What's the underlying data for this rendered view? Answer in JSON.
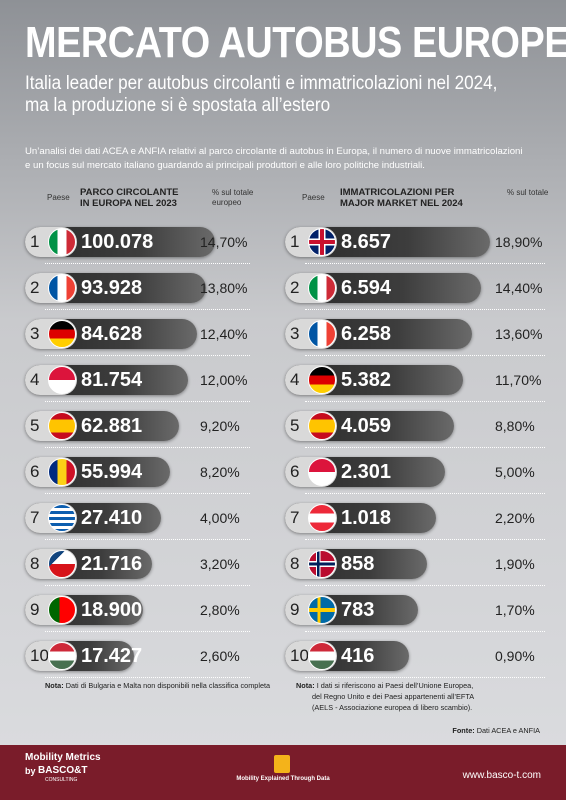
{
  "header": {
    "title": "MERCATO AUTOBUS EUROPEO",
    "subtitle": [
      "Italia leader per autobus circolanti e immatricolazioni nel 2024,",
      "ma la produzione si è spostata all’estero"
    ],
    "intro": [
      "Un’analisi dei dati ACEA e ANFIA relativi al parco circolante di autobus in Europa, il numero di nuove immatricolazioni",
      "e un focus sul mercato italiano guardando ai principali produttori e alle loro politiche industriali."
    ]
  },
  "tables": [
    {
      "headers": {
        "country": "Paese",
        "metric": [
          "PARCO CIRCOLANTE",
          "IN EUROPA NEL 2023"
        ],
        "share": [
          "% sul totale",
          "europeo"
        ]
      },
      "rows": [
        [
          1,
          "100.078",
          "14,70%"
        ],
        [
          2,
          "93.928",
          "13,80%"
        ],
        [
          3,
          "84.628",
          "12,40%"
        ],
        [
          4,
          "81.754",
          "12,00%"
        ],
        [
          5,
          "62.881",
          "9,20%"
        ],
        [
          6,
          "55.994",
          "8,20%"
        ],
        [
          7,
          "27.410",
          "4,00%"
        ],
        [
          8,
          "21.716",
          "3,20%"
        ],
        [
          9,
          "18.900",
          "2,80%"
        ],
        [
          10,
          "17.427",
          "2,60%"
        ]
      ],
      "note_label": "Nota:",
      "note": [
        "Dati di Bulgaria e Malta non disponibili nella classifica completa"
      ]
    },
    {
      "headers": {
        "country": "Paese",
        "metric": [
          "IMMATRICOLAZIONI PER",
          "MAJOR MARKET NEL 2024"
        ],
        "share": [
          "% sul totale"
        ]
      },
      "rows": [
        [
          1,
          "8.657",
          "18,90%"
        ],
        [
          2,
          "6.594",
          "14,40%"
        ],
        [
          3,
          "6.258",
          "13,60%"
        ],
        [
          4,
          "5.382",
          "11,70%"
        ],
        [
          5,
          "4.059",
          "8,80%"
        ],
        [
          6,
          "2.301",
          "5,00%"
        ],
        [
          7,
          "1.018",
          "2,20%"
        ],
        [
          8,
          "858",
          "1,90%"
        ],
        [
          9,
          "783",
          "1,70%"
        ],
        [
          10,
          "416",
          "0,90%"
        ]
      ],
      "note_label": "Nota:",
      "note": [
        "I dati si riferiscono ai Paesi dell’Unione Europea,",
        "del Regno Unito e dei Paesi appartenenti all’EFTA",
        "(AELS - Associazione europea di libero scambio)."
      ]
    }
  ],
  "source": {
    "label": "Fonte:",
    "text": "Dati ACEA e ANFIA"
  },
  "footer": {
    "brand": "Mobility Metrics",
    "by": "by",
    "company": "BASCO&T",
    "company_sub": "CONSULTING",
    "tagline": "Mobility Explained Through Data",
    "url": "www.basco-t.com"
  }
}
